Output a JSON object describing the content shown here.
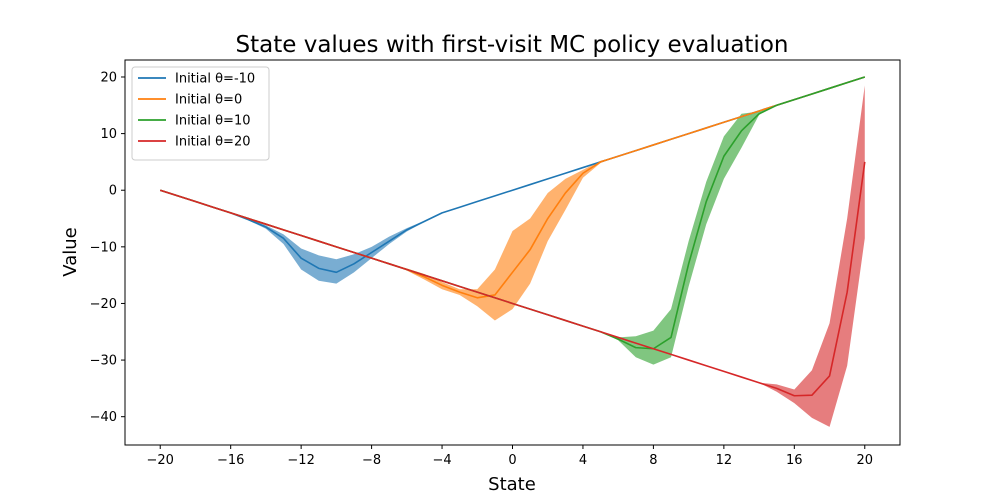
{
  "chart_data": {
    "type": "line",
    "title": "State values with first-visit MC policy evaluation",
    "xlabel": "State",
    "ylabel": "Value",
    "xlim": [
      -22,
      22
    ],
    "ylim": [
      -45,
      23
    ],
    "xticks": [
      -20,
      -16,
      -12,
      -8,
      -4,
      0,
      4,
      8,
      12,
      16,
      20
    ],
    "yticks": [
      -40,
      -30,
      -20,
      -10,
      0,
      10,
      20
    ],
    "xtick_labels": [
      "−20",
      "−16",
      "−12",
      "−8",
      "−4",
      "0",
      "4",
      "8",
      "12",
      "16",
      "20"
    ],
    "ytick_labels": [
      "−40",
      "−30",
      "−20",
      "−10",
      "0",
      "10",
      "20"
    ],
    "grid": false,
    "legend_position": "upper-left",
    "series": [
      {
        "name": "Initial θ=-10",
        "color": "#1f77b4",
        "x": [
          -20,
          -19,
          -18,
          -17,
          -16,
          -15,
          -14,
          -13,
          -12,
          -11,
          -10,
          -9,
          -8,
          -7,
          -6,
          -5,
          -4,
          -3,
          -2,
          -1,
          0,
          1,
          2,
          3,
          4,
          5,
          6,
          7,
          8,
          9,
          10,
          11,
          12,
          13,
          14,
          15,
          16,
          17,
          18,
          19,
          20
        ],
        "mean": [
          0,
          -1,
          -2,
          -3,
          -4,
          -5.2,
          -6.5,
          -8.5,
          -12,
          -13.8,
          -14.5,
          -13,
          -11,
          -9,
          -7,
          -5.5,
          -4,
          -3,
          -2,
          -1,
          0,
          1,
          2,
          3,
          4,
          5,
          6,
          7,
          8,
          9,
          10,
          11,
          12,
          13,
          14,
          15,
          16,
          17,
          18,
          19,
          20
        ],
        "lower": [
          0,
          -1,
          -2,
          -3,
          -4,
          -5.3,
          -6.8,
          -9.5,
          -14,
          -16,
          -16.5,
          -14.5,
          -12,
          -9.5,
          -7.3,
          -5.6,
          -4,
          -3,
          -2,
          -1,
          0,
          1,
          2,
          3,
          4,
          5,
          6,
          7,
          8,
          9,
          10,
          11,
          12,
          13,
          14,
          15,
          16,
          17,
          18,
          19,
          20
        ],
        "upper": [
          0,
          -1,
          -2,
          -3,
          -4,
          -5.1,
          -6.2,
          -7.8,
          -10.3,
          -11.5,
          -12.2,
          -11.3,
          -10,
          -8.2,
          -6.7,
          -5.4,
          -4,
          -3,
          -2,
          -1,
          0,
          1,
          2,
          3,
          4,
          5,
          6,
          7,
          8,
          9,
          10,
          11,
          12,
          13,
          14,
          15,
          16,
          17,
          18,
          19,
          20
        ]
      },
      {
        "name": "Initial θ=0",
        "color": "#ff7f0e",
        "x": [
          -20,
          -19,
          -18,
          -17,
          -16,
          -15,
          -14,
          -13,
          -12,
          -11,
          -10,
          -9,
          -8,
          -7,
          -6,
          -5,
          -4,
          -3,
          -2,
          -1,
          0,
          1,
          2,
          3,
          4,
          5,
          6,
          7,
          8,
          9,
          10,
          11,
          12,
          13,
          14,
          15,
          16,
          17,
          18,
          19,
          20
        ],
        "mean": [
          0,
          -1,
          -2,
          -3,
          -4,
          -5,
          -6,
          -7,
          -8,
          -9,
          -10,
          -11,
          -12,
          -13,
          -14,
          -15.3,
          -16.8,
          -18,
          -19,
          -18.5,
          -14.5,
          -10.5,
          -5,
          -0.5,
          3,
          5,
          6,
          7,
          8,
          9,
          10,
          11,
          12,
          13,
          14,
          15,
          16,
          17,
          18,
          19,
          20
        ],
        "lower": [
          0,
          -1,
          -2,
          -3,
          -4,
          -5,
          -6,
          -7,
          -8,
          -9,
          -10,
          -11,
          -12,
          -13,
          -14.2,
          -15.8,
          -17.5,
          -18.5,
          -20.5,
          -23,
          -21,
          -16.5,
          -9,
          -3.5,
          2.2,
          4.8,
          6,
          7,
          8,
          9,
          10,
          11,
          12,
          13,
          14,
          15,
          16,
          17,
          18,
          19,
          20
        ],
        "upper": [
          0,
          -1,
          -2,
          -3,
          -4,
          -5,
          -6,
          -7,
          -8,
          -9,
          -10,
          -11,
          -12,
          -13,
          -13.8,
          -14.8,
          -16.2,
          -17.5,
          -17.5,
          -14,
          -7.2,
          -5,
          -0.5,
          2,
          3.6,
          5.2,
          6,
          7,
          8,
          9,
          10,
          11,
          12,
          13,
          14,
          15,
          16,
          17,
          18,
          19,
          20
        ]
      },
      {
        "name": "Initial θ=10",
        "color": "#2ca02c",
        "x": [
          -20,
          -19,
          -18,
          -17,
          -16,
          -15,
          -14,
          -13,
          -12,
          -11,
          -10,
          -9,
          -8,
          -7,
          -6,
          -5,
          -4,
          -3,
          -2,
          -1,
          0,
          1,
          2,
          3,
          4,
          5,
          6,
          7,
          8,
          9,
          10,
          11,
          12,
          13,
          14,
          15,
          16,
          17,
          18,
          19,
          20
        ],
        "mean": [
          0,
          -1,
          -2,
          -3,
          -4,
          -5,
          -6,
          -7,
          -8,
          -9,
          -10,
          -11,
          -12,
          -13,
          -14,
          -15,
          -16,
          -17,
          -18,
          -19,
          -20,
          -21,
          -22,
          -23,
          -24,
          -25,
          -26.3,
          -27.8,
          -28,
          -26,
          -13,
          -2,
          6,
          10.5,
          13.5,
          15,
          16,
          17,
          18,
          19,
          20
        ],
        "lower": [
          0,
          -1,
          -2,
          -3,
          -4,
          -5,
          -6,
          -7,
          -8,
          -9,
          -10,
          -11,
          -12,
          -13,
          -14,
          -15,
          -16,
          -17,
          -18,
          -19,
          -20,
          -21,
          -22,
          -23,
          -24,
          -25,
          -26.5,
          -29.5,
          -30.8,
          -29.5,
          -17,
          -6,
          2,
          7.5,
          13.3,
          15,
          16,
          17,
          18,
          19,
          20
        ],
        "upper": [
          0,
          -1,
          -2,
          -3,
          -4,
          -5,
          -6,
          -7,
          -8,
          -9,
          -10,
          -11,
          -12,
          -13,
          -14,
          -15,
          -16,
          -17,
          -18,
          -19,
          -20,
          -21,
          -22,
          -23,
          -24,
          -25,
          -26,
          -25.8,
          -24.8,
          -21,
          -9,
          1.5,
          9.5,
          13.5,
          13.9,
          15,
          16,
          17,
          18,
          19,
          20
        ]
      },
      {
        "name": "Initial θ=20",
        "color": "#d62728",
        "x": [
          -20,
          -19,
          -18,
          -17,
          -16,
          -15,
          -14,
          -13,
          -12,
          -11,
          -10,
          -9,
          -8,
          -7,
          -6,
          -5,
          -4,
          -3,
          -2,
          -1,
          0,
          1,
          2,
          3,
          4,
          5,
          6,
          7,
          8,
          9,
          10,
          11,
          12,
          13,
          14,
          15,
          16,
          17,
          18,
          19,
          20
        ],
        "mean": [
          0,
          -1,
          -2,
          -3,
          -4,
          -5,
          -6,
          -7,
          -8,
          -9,
          -10,
          -11,
          -12,
          -13,
          -14,
          -15,
          -16,
          -17,
          -18,
          -19,
          -20,
          -21,
          -22,
          -23,
          -24,
          -25,
          -26,
          -27,
          -28,
          -29,
          -30,
          -31,
          -32,
          -33,
          -34,
          -35,
          -36.3,
          -36.2,
          -32.8,
          -18,
          5
        ],
        "lower": [
          0,
          -1,
          -2,
          -3,
          -4,
          -5,
          -6,
          -7,
          -8,
          -9,
          -10,
          -11,
          -12,
          -13,
          -14,
          -15,
          -16,
          -17,
          -18,
          -19,
          -20,
          -21,
          -22,
          -23,
          -24,
          -25,
          -26,
          -27,
          -28,
          -29,
          -30,
          -31,
          -32,
          -33,
          -34,
          -35.6,
          -37.6,
          -40.2,
          -41.8,
          -31,
          -8.5
        ],
        "upper": [
          0,
          -1,
          -2,
          -3,
          -4,
          -5,
          -6,
          -7,
          -8,
          -9,
          -10,
          -11,
          -12,
          -13,
          -14,
          -15,
          -16,
          -17,
          -18,
          -19,
          -20,
          -21,
          -22,
          -23,
          -24,
          -25,
          -26,
          -27,
          -28,
          -29,
          -30,
          -31,
          -32,
          -33,
          -34,
          -34.3,
          -35.2,
          -31.8,
          -23.5,
          -5,
          18.5
        ]
      }
    ]
  }
}
